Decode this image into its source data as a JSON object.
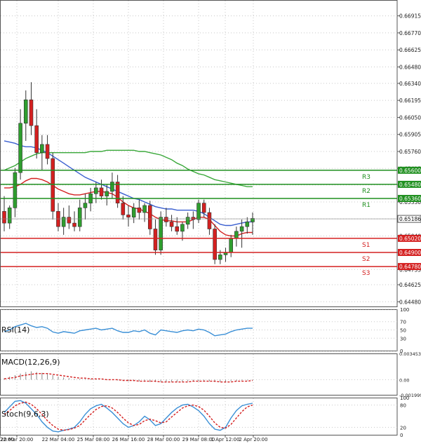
{
  "colors": {
    "background": "#ffffff",
    "grid": "#c8c8c8",
    "candle_up": "#2e9e2e",
    "candle_down": "#d42020",
    "ma_fast": "#d42020",
    "ma_mid": "#3a5fd0",
    "ma_slow": "#3aa83a",
    "resistance": "#1f8f1f",
    "support": "#d42020",
    "price_tag": "#1a1a1a",
    "osc_blue": "#3a8fd6",
    "osc_red": "#d42020"
  },
  "chart_data": [
    {
      "type": "candlestick",
      "title": "",
      "ylim": [
        0.6444,
        0.6705
      ],
      "y_ticks": [
        "0.66915",
        "0.66770",
        "0.66625",
        "0.66480",
        "0.66340",
        "0.66195",
        "0.66050",
        "0.65905",
        "0.65760",
        "0.65615",
        "0.65475",
        "0.65330",
        "0.65186",
        "0.65040",
        "0.64900",
        "0.64755",
        "0.64625",
        "0.64480"
      ],
      "current_price_label": "0.65186",
      "x_tick_labels": [
        "22:00",
        "20 Mar 20:00",
        "22 Mar 04:00",
        "25 Mar 08:00",
        "26 Mar 16:00",
        "28 Mar 00:00",
        "29 Mar 08:00",
        "1 Apr 12:00",
        "2 Apr 20:00"
      ],
      "candles": [
        [
          0.6525,
          0.6538,
          0.6508,
          0.6515
        ],
        [
          0.6515,
          0.653,
          0.651,
          0.6528
        ],
        [
          0.6528,
          0.6562,
          0.652,
          0.6558
        ],
        [
          0.6558,
          0.6612,
          0.6552,
          0.66
        ],
        [
          0.66,
          0.6628,
          0.6585,
          0.662
        ],
        [
          0.662,
          0.6635,
          0.659,
          0.6598
        ],
        [
          0.6598,
          0.6612,
          0.657,
          0.6575
        ],
        [
          0.6575,
          0.659,
          0.656,
          0.6582
        ],
        [
          0.6582,
          0.659,
          0.6565,
          0.657
        ],
        [
          0.657,
          0.6575,
          0.6518,
          0.6525
        ],
        [
          0.6525,
          0.6532,
          0.6508,
          0.6512
        ],
        [
          0.6512,
          0.6528,
          0.6505,
          0.652
        ],
        [
          0.652,
          0.653,
          0.651,
          0.6515
        ],
        [
          0.6515,
          0.6525,
          0.6508,
          0.6512
        ],
        [
          0.6512,
          0.6535,
          0.6508,
          0.6528
        ],
        [
          0.6528,
          0.654,
          0.6518,
          0.6532
        ],
        [
          0.6532,
          0.6545,
          0.6525,
          0.654
        ],
        [
          0.654,
          0.655,
          0.6532,
          0.6545
        ],
        [
          0.6545,
          0.6552,
          0.6535,
          0.6538
        ],
        [
          0.6538,
          0.6548,
          0.653,
          0.6542
        ],
        [
          0.6542,
          0.6558,
          0.6536,
          0.655
        ],
        [
          0.655,
          0.6556,
          0.6528,
          0.6532
        ],
        [
          0.6532,
          0.6538,
          0.6518,
          0.6522
        ],
        [
          0.6522,
          0.653,
          0.6512,
          0.652
        ],
        [
          0.652,
          0.6532,
          0.6515,
          0.6528
        ],
        [
          0.6528,
          0.6535,
          0.6518,
          0.6524
        ],
        [
          0.6524,
          0.6532,
          0.6516,
          0.653
        ],
        [
          0.653,
          0.6534,
          0.6505,
          0.651
        ],
        [
          0.651,
          0.6518,
          0.6488,
          0.6492
        ],
        [
          0.6492,
          0.6525,
          0.6488,
          0.652
        ],
        [
          0.652,
          0.6528,
          0.6512,
          0.6516
        ],
        [
          0.6516,
          0.6522,
          0.6508,
          0.6512
        ],
        [
          0.6512,
          0.652,
          0.6505,
          0.6508
        ],
        [
          0.6508,
          0.6516,
          0.65,
          0.6514
        ],
        [
          0.6514,
          0.6524,
          0.651,
          0.652
        ],
        [
          0.652,
          0.6525,
          0.651,
          0.6518
        ],
        [
          0.6518,
          0.6535,
          0.6515,
          0.6532
        ],
        [
          0.6532,
          0.6535,
          0.652,
          0.6524
        ],
        [
          0.6524,
          0.6528,
          0.6505,
          0.651
        ],
        [
          0.651,
          0.6514,
          0.648,
          0.6484
        ],
        [
          0.6484,
          0.6492,
          0.648,
          0.6488
        ],
        [
          0.6488,
          0.6494,
          0.6482,
          0.649
        ],
        [
          0.649,
          0.6505,
          0.6486,
          0.6502
        ],
        [
          0.6502,
          0.6512,
          0.6495,
          0.6508
        ],
        [
          0.6508,
          0.6518,
          0.6494,
          0.6512
        ],
        [
          0.6512,
          0.652,
          0.6506,
          0.6516
        ],
        [
          0.6516,
          0.6524,
          0.6505,
          0.6519
        ]
      ],
      "ma_fast": [
        0.6545,
        0.6545,
        0.6546,
        0.6548,
        0.6551,
        0.6553,
        0.6553,
        0.6552,
        0.655,
        0.6547,
        0.6544,
        0.6542,
        0.654,
        0.6539,
        0.6539,
        0.654,
        0.6541,
        0.6542,
        0.6542,
        0.6541,
        0.654,
        0.6537,
        0.6533,
        0.653,
        0.6528,
        0.6527,
        0.6525,
        0.6523,
        0.652,
        0.6518,
        0.6517,
        0.6517,
        0.6516,
        0.6516,
        0.6516,
        0.6518,
        0.652,
        0.652,
        0.6518,
        0.6513,
        0.6508,
        0.6505,
        0.6504,
        0.6504,
        0.6506,
        0.6507,
        0.6507
      ],
      "ma_mid": [
        0.6585,
        0.6584,
        0.6583,
        0.6581,
        0.658,
        0.658,
        0.6579,
        0.6577,
        0.6575,
        0.6572,
        0.6569,
        0.6566,
        0.6563,
        0.656,
        0.6557,
        0.6554,
        0.6552,
        0.655,
        0.6548,
        0.6546,
        0.6544,
        0.6542,
        0.654,
        0.6538,
        0.6536,
        0.6535,
        0.6533,
        0.6531,
        0.6529,
        0.6528,
        0.6527,
        0.6527,
        0.6526,
        0.6526,
        0.6526,
        0.6526,
        0.6525,
        0.6523,
        0.652,
        0.6517,
        0.6514,
        0.6513,
        0.6513,
        0.6514,
        0.6515,
        0.6516,
        0.6516
      ],
      "ma_slow": [
        0.656,
        0.6562,
        0.6564,
        0.6567,
        0.657,
        0.6572,
        0.6574,
        0.6575,
        0.6575,
        0.6575,
        0.6575,
        0.6575,
        0.6575,
        0.6575,
        0.6575,
        0.6575,
        0.6576,
        0.6576,
        0.6576,
        0.6577,
        0.6577,
        0.6577,
        0.6577,
        0.6577,
        0.6577,
        0.6576,
        0.6576,
        0.6575,
        0.6574,
        0.6573,
        0.6571,
        0.6569,
        0.6566,
        0.6564,
        0.6561,
        0.6559,
        0.6557,
        0.6556,
        0.6554,
        0.6552,
        0.6551,
        0.655,
        0.6549,
        0.6548,
        0.6547,
        0.6546,
        0.6546
      ],
      "levels": [
        {
          "name": "R3",
          "value": 0.656,
          "label": "0.65600",
          "kind": "resistance"
        },
        {
          "name": "R2",
          "value": 0.6548,
          "label": "0.65480",
          "kind": "resistance"
        },
        {
          "name": "R1",
          "value": 0.6536,
          "label": "0.65360",
          "kind": "resistance"
        },
        {
          "name": "S1",
          "value": 0.6502,
          "label": "0.65020",
          "kind": "support"
        },
        {
          "name": "S2",
          "value": 0.649,
          "label": "0.64900",
          "kind": "support"
        },
        {
          "name": "S3",
          "value": 0.6478,
          "label": "0.64780",
          "kind": "support"
        }
      ]
    },
    {
      "type": "line",
      "title": "RSI(14)",
      "ylim": [
        0,
        100
      ],
      "y_ticks": [
        "100",
        "70",
        "50",
        "30",
        "0"
      ],
      "values": [
        46,
        50,
        58,
        62,
        66,
        60,
        56,
        58,
        54,
        45,
        42,
        46,
        44,
        42,
        48,
        50,
        52,
        54,
        50,
        52,
        54,
        48,
        44,
        44,
        48,
        46,
        50,
        42,
        38,
        50,
        48,
        46,
        44,
        48,
        50,
        48,
        52,
        50,
        44,
        36,
        38,
        40,
        46,
        50,
        52,
        54,
        54
      ]
    },
    {
      "type": "bar",
      "title": "MACD(12,26,9)",
      "ylim": [
        -0.00199,
        0.00345
      ],
      "y_ticks": [
        "0.003453",
        "0.00",
        "-0.001999"
      ],
      "values": [
        0.0002,
        0.0004,
        0.0006,
        0.0008,
        0.001,
        0.0011,
        0.001,
        0.0009,
        0.0008,
        0.0006,
        0.0004,
        0.0003,
        0.0002,
        0.0001,
        0.0001,
        0.0001,
        0.0001,
        0.0001,
        0.0,
        0.0,
        0.0,
        -0.0001,
        -0.0001,
        -0.0002,
        -0.0002,
        -0.0002,
        -0.0002,
        -0.0003,
        -0.0003,
        -0.0003,
        -0.0003,
        -0.0003,
        -0.0003,
        -0.0003,
        -0.0002,
        -0.0002,
        -0.0002,
        -0.0002,
        -0.0002,
        -0.0003,
        -0.0003,
        -0.0003,
        -0.0002,
        -0.0002,
        -0.0001,
        -0.0001,
        -0.0001
      ],
      "signal": [
        0.0001,
        0.0002,
        0.0003,
        0.0005,
        0.0006,
        0.0007,
        0.0008,
        0.0008,
        0.0008,
        0.0007,
        0.0006,
        0.0005,
        0.0004,
        0.0003,
        0.0002,
        0.0002,
        0.0001,
        0.0001,
        0.0001,
        0.0,
        0.0,
        0.0,
        -0.0001,
        -0.0001,
        -0.0001,
        -0.0002,
        -0.0002,
        -0.0002,
        -0.0002,
        -0.0003,
        -0.0003,
        -0.0003,
        -0.0003,
        -0.0003,
        -0.0003,
        -0.0002,
        -0.0002,
        -0.0002,
        -0.0002,
        -0.0002,
        -0.0003,
        -0.0003,
        -0.0003,
        -0.0002,
        -0.0002,
        -0.0002,
        -0.0001
      ]
    },
    {
      "type": "line",
      "title": "Stoch(9,6,3)",
      "ylim": [
        0,
        100
      ],
      "y_ticks": [
        "100",
        "80",
        "20",
        "0"
      ],
      "k": [
        60,
        75,
        90,
        92,
        85,
        70,
        55,
        35,
        20,
        10,
        8,
        12,
        15,
        20,
        35,
        55,
        70,
        78,
        82,
        72,
        60,
        45,
        30,
        20,
        25,
        35,
        50,
        40,
        25,
        30,
        45,
        60,
        72,
        80,
        82,
        75,
        65,
        50,
        30,
        15,
        12,
        20,
        45,
        65,
        78,
        82,
        85
      ],
      "d": [
        55,
        65,
        78,
        85,
        88,
        82,
        70,
        55,
        38,
        25,
        15,
        12,
        14,
        18,
        25,
        40,
        55,
        68,
        76,
        78,
        72,
        60,
        45,
        32,
        25,
        28,
        38,
        42,
        38,
        32,
        35,
        48,
        60,
        72,
        78,
        80,
        76,
        66,
        50,
        32,
        20,
        18,
        28,
        45,
        62,
        75,
        80
      ]
    }
  ]
}
